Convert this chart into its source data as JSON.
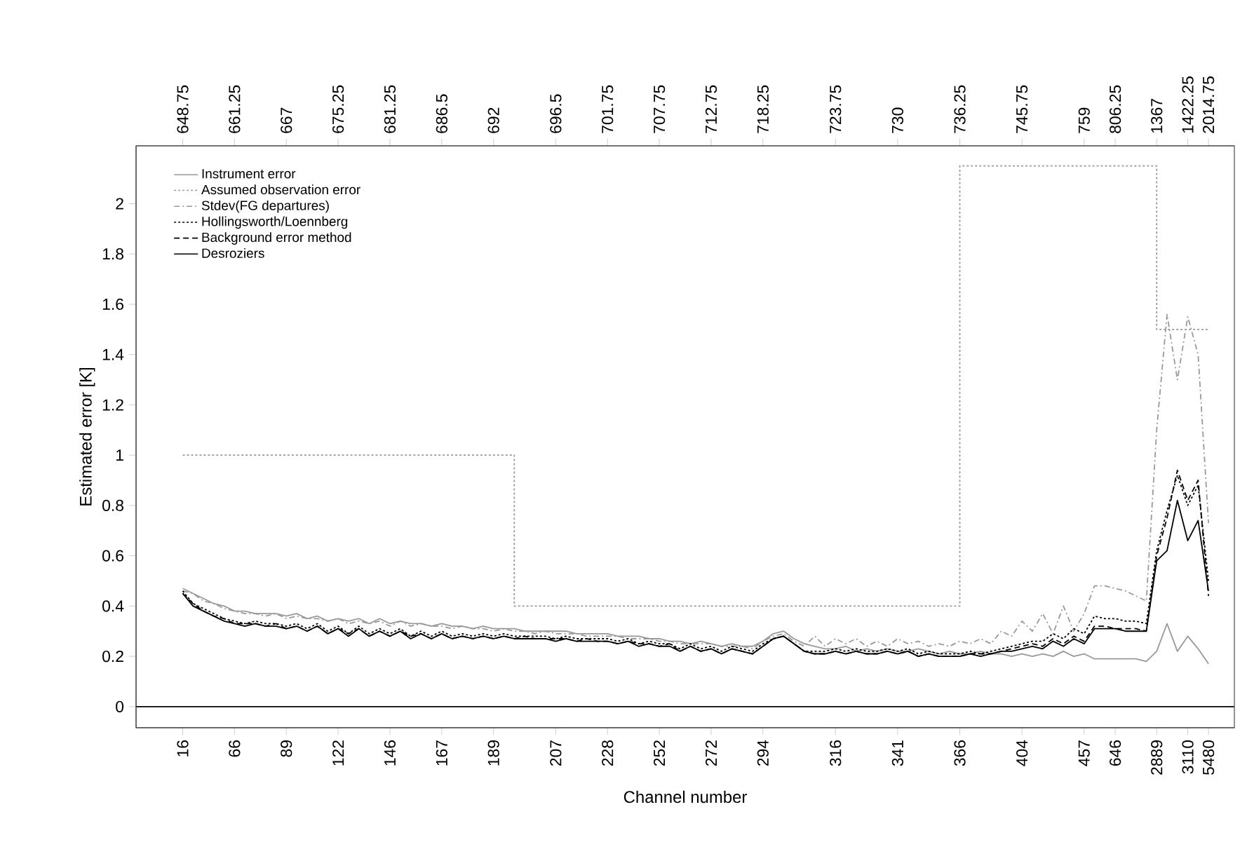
{
  "chart_data": {
    "type": "line",
    "xlabel": "Channel number",
    "ylabel": "Estimated error [K]",
    "ylim": [
      -0.084,
      2.23
    ],
    "yticks": [
      0,
      0.2,
      0.4,
      0.6,
      0.8,
      1,
      1.2,
      1.4,
      1.6,
      1.8,
      2
    ],
    "categories": [
      "16",
      null,
      null,
      null,
      null,
      "66",
      null,
      null,
      null,
      null,
      "89",
      null,
      null,
      null,
      null,
      "122",
      null,
      null,
      null,
      null,
      "146",
      null,
      null,
      null,
      null,
      "167",
      null,
      null,
      null,
      null,
      "189",
      null,
      null,
      null,
      null,
      null,
      "207",
      null,
      null,
      null,
      null,
      "228",
      null,
      null,
      null,
      null,
      "252",
      null,
      null,
      null,
      null,
      "272",
      null,
      null,
      null,
      null,
      "294",
      null,
      null,
      null,
      null,
      null,
      null,
      "316",
      null,
      null,
      null,
      null,
      null,
      "341",
      null,
      null,
      null,
      null,
      null,
      "366",
      null,
      null,
      null,
      null,
      null,
      "404",
      null,
      null,
      null,
      null,
      null,
      "457",
      null,
      null,
      "646",
      null,
      null,
      null,
      "2889",
      null,
      null,
      "3110",
      null,
      "5480"
    ],
    "annotations": [
      "648.75",
      "661.25",
      "667",
      "675.25",
      "681.25",
      "686.5",
      "692",
      "696.5",
      "701.75",
      "707.75",
      "712.75",
      "718.25",
      "723.75",
      "730",
      "736.25",
      "745.75",
      "759",
      "806.25",
      "1367",
      "1422.25",
      "2014.75"
    ],
    "legend": "top left",
    "grid": false,
    "ref_lines": [
      {
        "axis": "y",
        "value": 0,
        "color": "#000000"
      }
    ],
    "series": [
      {
        "name": "Instrument error",
        "color": "#999999",
        "line_style": "solid",
        "values": [
          0.47,
          0.45,
          0.43,
          0.41,
          0.4,
          0.38,
          0.38,
          0.37,
          0.37,
          0.37,
          0.36,
          0.37,
          0.35,
          0.36,
          0.34,
          0.35,
          0.34,
          0.35,
          0.33,
          0.35,
          0.33,
          0.34,
          0.33,
          0.33,
          0.32,
          0.33,
          0.32,
          0.32,
          0.31,
          0.32,
          0.31,
          0.31,
          0.31,
          0.3,
          0.3,
          0.3,
          0.3,
          0.3,
          0.29,
          0.29,
          0.29,
          0.29,
          0.28,
          0.28,
          0.28,
          0.27,
          0.27,
          0.26,
          0.26,
          0.25,
          0.26,
          0.25,
          0.24,
          0.25,
          0.24,
          0.24,
          0.26,
          0.29,
          0.3,
          0.27,
          0.25,
          0.24,
          0.23,
          0.23,
          0.24,
          0.22,
          0.23,
          0.22,
          0.23,
          0.22,
          0.22,
          0.23,
          0.22,
          0.21,
          0.22,
          0.21,
          0.21,
          0.22,
          0.21,
          0.21,
          0.2,
          0.21,
          0.2,
          0.21,
          0.2,
          0.22,
          0.2,
          0.21,
          0.19,
          0.19,
          0.19,
          0.19,
          0.19,
          0.18,
          0.22,
          0.33,
          0.22,
          0.28,
          0.23,
          0.17
        ]
      },
      {
        "name": "Assumed observation error",
        "type": "step",
        "color": "#999999",
        "line_style": "dotted",
        "values": [
          1,
          1,
          1,
          1,
          1,
          1,
          1,
          1,
          1,
          1,
          1,
          1,
          1,
          1,
          1,
          1,
          1,
          1,
          1,
          1,
          1,
          1,
          1,
          1,
          1,
          1,
          1,
          1,
          1,
          1,
          1,
          1,
          0.4,
          0.4,
          0.4,
          0.4,
          0.4,
          0.4,
          0.4,
          0.4,
          0.4,
          0.4,
          0.4,
          0.4,
          0.4,
          0.4,
          0.4,
          0.4,
          0.4,
          0.4,
          0.4,
          0.4,
          0.4,
          0.4,
          0.4,
          0.4,
          0.4,
          0.4,
          0.4,
          0.4,
          0.4,
          0.4,
          0.4,
          0.4,
          0.4,
          0.4,
          0.4,
          0.4,
          0.4,
          0.4,
          0.4,
          0.4,
          0.4,
          0.4,
          0.4,
          2.15,
          2.15,
          2.15,
          2.15,
          2.15,
          2.15,
          2.15,
          2.15,
          2.15,
          2.15,
          2.15,
          2.15,
          2.15,
          2.15,
          2.15,
          2.15,
          2.15,
          2.15,
          2.15,
          1.5,
          1.5,
          1.5,
          1.5,
          1.5,
          1.5
        ]
      },
      {
        "name": "Stdev(FG departures)",
        "color": "#999999",
        "line_style": "dashdot",
        "values": [
          0.46,
          0.45,
          0.42,
          0.41,
          0.39,
          0.38,
          0.37,
          0.37,
          0.36,
          0.37,
          0.35,
          0.36,
          0.35,
          0.35,
          0.34,
          0.35,
          0.33,
          0.34,
          0.33,
          0.34,
          0.32,
          0.34,
          0.32,
          0.33,
          0.32,
          0.32,
          0.31,
          0.32,
          0.31,
          0.31,
          0.3,
          0.31,
          0.3,
          0.3,
          0.29,
          0.3,
          0.29,
          0.29,
          0.29,
          0.28,
          0.28,
          0.28,
          0.28,
          0.27,
          0.27,
          0.27,
          0.26,
          0.26,
          0.25,
          0.25,
          0.25,
          0.25,
          0.24,
          0.24,
          0.24,
          0.23,
          0.26,
          0.28,
          0.29,
          0.26,
          0.24,
          0.28,
          0.24,
          0.27,
          0.25,
          0.27,
          0.24,
          0.26,
          0.24,
          0.27,
          0.25,
          0.26,
          0.24,
          0.25,
          0.24,
          0.26,
          0.25,
          0.27,
          0.25,
          0.3,
          0.28,
          0.34,
          0.3,
          0.37,
          0.29,
          0.4,
          0.3,
          0.37,
          0.48,
          0.48,
          0.47,
          0.46,
          0.44,
          0.42,
          1.1,
          1.56,
          1.3,
          1.55,
          1.4,
          0.73
        ]
      },
      {
        "name": "Hollingsworth/Loennberg",
        "color": "#000000",
        "line_style": "dotted",
        "values": [
          0.46,
          0.41,
          0.39,
          0.37,
          0.35,
          0.34,
          0.33,
          0.34,
          0.33,
          0.33,
          0.32,
          0.33,
          0.31,
          0.33,
          0.3,
          0.32,
          0.29,
          0.32,
          0.29,
          0.31,
          0.29,
          0.31,
          0.28,
          0.3,
          0.28,
          0.3,
          0.28,
          0.29,
          0.28,
          0.29,
          0.28,
          0.29,
          0.28,
          0.28,
          0.28,
          0.28,
          0.27,
          0.28,
          0.27,
          0.27,
          0.27,
          0.27,
          0.26,
          0.27,
          0.25,
          0.26,
          0.25,
          0.25,
          0.23,
          0.25,
          0.23,
          0.24,
          0.22,
          0.24,
          0.23,
          0.22,
          0.25,
          0.27,
          0.28,
          0.25,
          0.22,
          0.22,
          0.22,
          0.23,
          0.22,
          0.23,
          0.22,
          0.22,
          0.23,
          0.22,
          0.23,
          0.21,
          0.22,
          0.21,
          0.21,
          0.21,
          0.22,
          0.21,
          0.22,
          0.23,
          0.24,
          0.25,
          0.26,
          0.26,
          0.29,
          0.27,
          0.31,
          0.29,
          0.36,
          0.35,
          0.35,
          0.34,
          0.34,
          0.33,
          0.62,
          0.78,
          0.92,
          0.8,
          0.88,
          0.5
        ]
      },
      {
        "name": "Background error method",
        "color": "#000000",
        "line_style": "dashed",
        "values": [
          0.45,
          0.41,
          0.38,
          0.36,
          0.35,
          0.33,
          0.33,
          0.33,
          0.32,
          0.33,
          0.31,
          0.32,
          0.3,
          0.32,
          0.29,
          0.31,
          0.29,
          0.31,
          0.28,
          0.3,
          0.28,
          0.3,
          0.28,
          0.29,
          0.27,
          0.29,
          0.27,
          0.28,
          0.27,
          0.28,
          0.27,
          0.28,
          0.27,
          0.28,
          0.27,
          0.27,
          0.27,
          0.27,
          0.26,
          0.27,
          0.26,
          0.26,
          0.25,
          0.26,
          0.25,
          0.25,
          0.24,
          0.25,
          0.22,
          0.24,
          0.22,
          0.23,
          0.21,
          0.23,
          0.22,
          0.21,
          0.24,
          0.27,
          0.28,
          0.25,
          0.22,
          0.21,
          0.21,
          0.22,
          0.21,
          0.22,
          0.21,
          0.21,
          0.22,
          0.21,
          0.22,
          0.2,
          0.21,
          0.2,
          0.2,
          0.2,
          0.21,
          0.21,
          0.21,
          0.22,
          0.23,
          0.24,
          0.25,
          0.24,
          0.27,
          0.25,
          0.28,
          0.26,
          0.32,
          0.32,
          0.31,
          0.31,
          0.31,
          0.3,
          0.6,
          0.75,
          0.94,
          0.82,
          0.9,
          0.44
        ]
      },
      {
        "name": "Desroziers",
        "color": "#000000",
        "line_style": "solid",
        "values": [
          0.45,
          0.4,
          0.38,
          0.36,
          0.34,
          0.33,
          0.32,
          0.33,
          0.32,
          0.32,
          0.31,
          0.32,
          0.3,
          0.32,
          0.29,
          0.31,
          0.28,
          0.31,
          0.28,
          0.3,
          0.28,
          0.3,
          0.27,
          0.29,
          0.27,
          0.29,
          0.27,
          0.28,
          0.27,
          0.28,
          0.27,
          0.28,
          0.27,
          0.27,
          0.27,
          0.27,
          0.26,
          0.27,
          0.26,
          0.26,
          0.26,
          0.26,
          0.25,
          0.26,
          0.24,
          0.25,
          0.24,
          0.24,
          0.22,
          0.24,
          0.22,
          0.23,
          0.21,
          0.23,
          0.22,
          0.21,
          0.24,
          0.27,
          0.28,
          0.25,
          0.22,
          0.21,
          0.21,
          0.22,
          0.21,
          0.22,
          0.21,
          0.21,
          0.22,
          0.21,
          0.22,
          0.2,
          0.21,
          0.2,
          0.2,
          0.2,
          0.21,
          0.2,
          0.21,
          0.22,
          0.22,
          0.23,
          0.24,
          0.23,
          0.26,
          0.24,
          0.27,
          0.25,
          0.31,
          0.31,
          0.31,
          0.3,
          0.3,
          0.3,
          0.58,
          0.62,
          0.82,
          0.66,
          0.74,
          0.46
        ]
      }
    ]
  }
}
